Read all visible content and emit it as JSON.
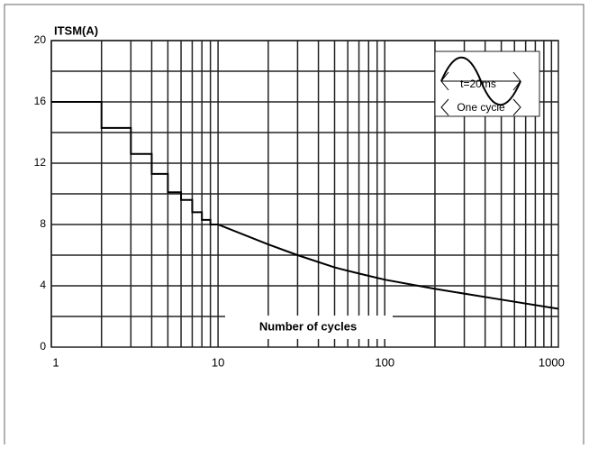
{
  "chart_data": {
    "type": "line",
    "y_label": "ITSM(A)",
    "x_label": "Number of cycles",
    "annotations": [
      "t=20ms",
      "One cycle"
    ],
    "log_x": true,
    "xlim": [
      1,
      1100
    ],
    "ylim": [
      0,
      20
    ],
    "xticks": [
      1,
      10,
      100,
      1000
    ],
    "yticks": [
      0,
      4,
      8,
      12,
      16,
      20
    ],
    "xgrid": [
      1,
      2,
      3,
      4,
      5,
      6,
      7,
      8,
      9,
      10,
      20,
      30,
      40,
      50,
      60,
      70,
      80,
      90,
      100,
      200,
      300,
      400,
      500,
      600,
      700,
      800,
      900,
      1000
    ],
    "ygrid": [
      2,
      4,
      6,
      8,
      10,
      12,
      14,
      16,
      18,
      20
    ],
    "grid": true,
    "color": "#000000",
    "x": [
      1,
      2,
      2,
      3,
      3,
      4,
      4,
      5,
      5,
      6,
      6,
      7,
      7,
      8,
      8,
      9,
      9,
      10,
      20,
      30,
      50,
      70,
      100,
      200,
      500,
      1100
    ],
    "values": [
      16,
      16,
      14.3,
      14.3,
      12.6,
      12.6,
      11.3,
      11.3,
      10.1,
      10.1,
      9.6,
      9.6,
      8.8,
      8.8,
      8.3,
      8.3,
      8.0,
      8.0,
      6.7,
      6.0,
      5.2,
      4.8,
      4.4,
      3.8,
      3.1,
      2.5
    ]
  }
}
